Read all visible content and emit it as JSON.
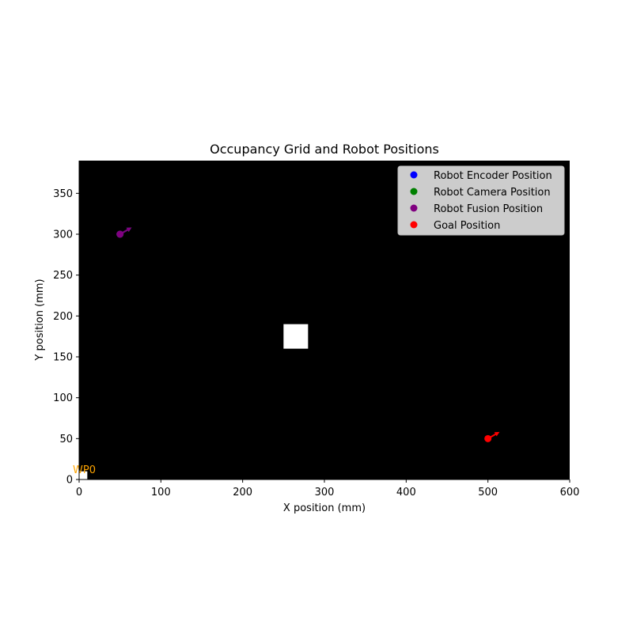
{
  "chart_data": {
    "type": "scatter",
    "title": "Occupancy Grid and Robot Positions",
    "xlabel": "X position (mm)",
    "ylabel": "Y position (mm)",
    "xlim": [
      0,
      600
    ],
    "ylim": [
      0,
      390
    ],
    "x_ticks": [
      0,
      100,
      200,
      300,
      400,
      500,
      600
    ],
    "y_ticks": [
      0,
      50,
      100,
      150,
      200,
      250,
      300,
      350
    ],
    "grid": false,
    "background_color": "#000000",
    "legend_position": "top-right",
    "obstacles": [
      {
        "x": [
          250,
          280
        ],
        "y": [
          160,
          190
        ],
        "color": "#ffffff"
      },
      {
        "x": [
          0,
          10
        ],
        "y": [
          0,
          10
        ],
        "color": "#ffffff"
      }
    ],
    "series": [
      {
        "name": "Robot Encoder Position",
        "color": "#0000ff",
        "x": [
          50
        ],
        "y": [
          300
        ],
        "heading_deg": 30
      },
      {
        "name": "Robot Camera Position",
        "color": "#008000",
        "x": [
          50
        ],
        "y": [
          300
        ],
        "heading_deg": 30
      },
      {
        "name": "Robot Fusion Position",
        "color": "#800080",
        "x": [
          50
        ],
        "y": [
          300
        ],
        "heading_deg": 30
      },
      {
        "name": "Goal Position",
        "color": "#ff0000",
        "x": [
          500
        ],
        "y": [
          50
        ],
        "heading_deg": 30
      }
    ],
    "annotations": [
      {
        "text": "WP0",
        "x": 0,
        "y": 0,
        "color": "#ffa500"
      }
    ]
  }
}
